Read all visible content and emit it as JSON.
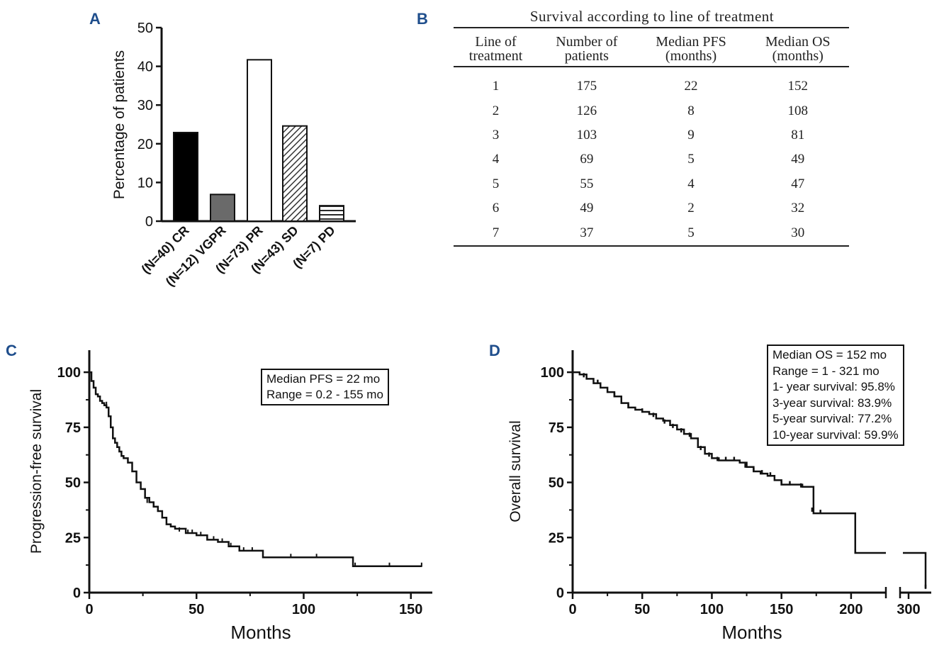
{
  "panel_labels": {
    "a": "A",
    "b": "B",
    "c": "C",
    "d": "D"
  },
  "chart_data": [
    {
      "id": "A",
      "type": "bar",
      "title": "",
      "xlabel": "",
      "ylabel": "Percentage of  patients",
      "ylim": [
        0,
        50
      ],
      "yticks": [
        0,
        10,
        20,
        30,
        40,
        50
      ],
      "categories": [
        "(N=40) CR",
        "(N=12) VGPR",
        "(N=73) PR",
        "(N=43) SD",
        "(N=7) PD"
      ],
      "values": [
        22.9,
        6.9,
        41.7,
        24.6,
        4.0
      ],
      "fills": [
        "solid-black",
        "solid-gray",
        "white",
        "diagonal-hatch",
        "horizontal-stripes"
      ]
    },
    {
      "id": "B",
      "type": "table",
      "title": "Survival according to line of treatment",
      "columns": [
        "Line of\ntreatment",
        "Number of\npatients",
        "Median PFS\n(months)",
        "Median OS\n(months)"
      ],
      "rows": [
        [
          "1",
          "175",
          "22",
          "152"
        ],
        [
          "2",
          "126",
          "8",
          "108"
        ],
        [
          "3",
          "103",
          "9",
          "81"
        ],
        [
          "4",
          "69",
          "5",
          "49"
        ],
        [
          "5",
          "55",
          "4",
          "47"
        ],
        [
          "6",
          "49",
          "2",
          "32"
        ],
        [
          "7",
          "37",
          "5",
          "30"
        ]
      ]
    },
    {
      "id": "C",
      "type": "line",
      "subtype": "kaplan-meier",
      "xlabel": "Months",
      "ylabel": "Progression-free  survival",
      "xlim": [
        0,
        160
      ],
      "ylim": [
        0,
        110
      ],
      "xticks": [
        0,
        50,
        100,
        150
      ],
      "yticks": [
        0,
        25,
        50,
        75,
        100
      ],
      "legend_location": "top-right",
      "legend": [
        "Median PFS = 22 mo",
        "Range = 0.2 - 155 mo"
      ],
      "x": [
        0,
        1,
        2,
        3,
        4,
        5,
        6,
        7,
        8,
        9,
        10,
        11,
        12,
        13,
        14,
        15,
        16,
        18,
        20,
        22,
        24,
        26,
        28,
        30,
        32,
        34,
        36,
        38,
        40,
        45,
        50,
        55,
        60,
        65,
        70,
        81,
        90,
        100,
        110,
        123,
        130,
        140,
        155
      ],
      "y": [
        100,
        96,
        93,
        90,
        89,
        87,
        86,
        85,
        84,
        80,
        75,
        70,
        68,
        66,
        64,
        62,
        61,
        59,
        55,
        50,
        47,
        43,
        41,
        39,
        37,
        34,
        31,
        30,
        29,
        27,
        26,
        24,
        23,
        21,
        19,
        16,
        16,
        16,
        16,
        12,
        12,
        12,
        12
      ],
      "censor_x": [
        8,
        27,
        30,
        42,
        46,
        48,
        52,
        55,
        58,
        62,
        66,
        72,
        76,
        94,
        106,
        124,
        140,
        155
      ],
      "censor_y": [
        85,
        41,
        39,
        28,
        27,
        27,
        26,
        24,
        24,
        23,
        21,
        19,
        19,
        16,
        16,
        12,
        12,
        12
      ]
    },
    {
      "id": "D",
      "type": "line",
      "subtype": "kaplan-meier",
      "xlabel": "Months",
      "ylabel": "Overall survival",
      "xlim": [
        0,
        330
      ],
      "axis_break": [
        225,
        240
      ],
      "ylim": [
        0,
        110
      ],
      "xticks": [
        0,
        50,
        100,
        150,
        200,
        300
      ],
      "yticks": [
        0,
        25,
        50,
        75,
        100
      ],
      "legend_location": "top-right",
      "legend": [
        "Median OS = 152 mo",
        "Range = 1 - 321 mo",
        "1- year  survival: 95.8%",
        "3-year  survival: 83.9%",
        "5-year  survival: 77.2%",
        "10-year  survival: 59.9%"
      ],
      "x": [
        0,
        5,
        10,
        15,
        20,
        25,
        30,
        35,
        40,
        45,
        50,
        55,
        60,
        65,
        70,
        75,
        80,
        85,
        90,
        95,
        100,
        105,
        110,
        115,
        120,
        125,
        130,
        135,
        140,
        145,
        150,
        155,
        160,
        165,
        170,
        173,
        180,
        185,
        190,
        195,
        200,
        203,
        215,
        225,
        240,
        250,
        260,
        321
      ],
      "y": [
        100,
        99,
        97,
        95,
        93,
        91,
        89,
        86,
        84,
        83,
        82,
        81,
        79,
        78,
        76,
        74,
        72,
        70,
        66,
        63,
        61,
        60,
        60,
        60,
        59,
        57,
        55,
        54,
        53,
        51,
        49,
        49,
        49,
        48,
        48,
        36,
        36,
        36,
        36,
        36,
        36,
        18,
        18,
        18,
        18,
        18,
        18,
        2
      ],
      "censor_x": [
        8,
        18,
        30,
        40,
        50,
        58,
        66,
        72,
        78,
        84,
        92,
        98,
        104,
        110,
        116,
        124,
        130,
        136,
        142,
        150,
        156,
        164,
        172,
        178,
        203,
        321
      ],
      "censor_y": [
        98,
        95,
        89,
        84,
        82,
        80,
        77,
        75,
        73,
        71,
        65,
        62,
        60,
        60,
        60,
        57,
        55,
        54,
        53,
        49,
        49,
        48,
        37,
        36,
        18,
        2
      ]
    }
  ]
}
